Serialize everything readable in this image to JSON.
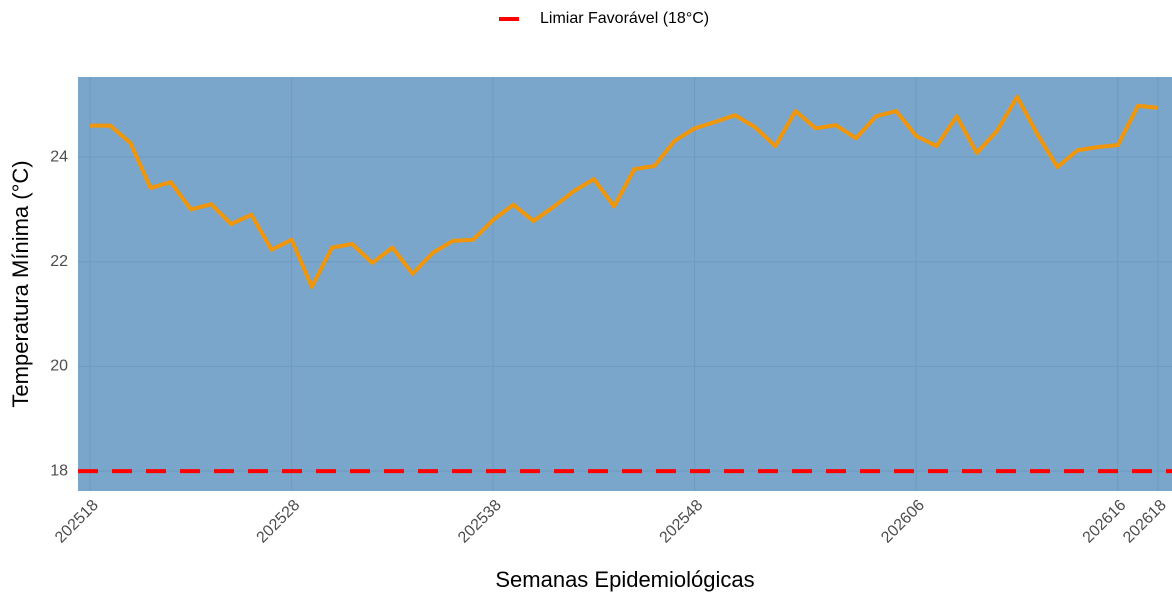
{
  "chart_data": {
    "type": "line",
    "x_label": "Semanas Epidemiológicas",
    "y_label": "Temperatura Mínima (°C)",
    "categories": [
      "202518",
      null,
      null,
      null,
      null,
      null,
      null,
      null,
      null,
      null,
      "202528",
      null,
      null,
      null,
      null,
      null,
      null,
      null,
      null,
      null,
      "202538",
      null,
      null,
      null,
      null,
      null,
      null,
      null,
      null,
      null,
      "202548",
      null,
      null,
      null,
      null,
      null,
      null,
      null,
      null,
      null,
      null,
      "202606",
      null,
      null,
      null,
      null,
      null,
      null,
      null,
      null,
      null,
      "202616",
      null,
      "202618"
    ],
    "values": [
      24.6,
      24.6,
      24.27,
      23.41,
      23.52,
      23.0,
      23.1,
      22.72,
      22.9,
      22.23,
      22.42,
      21.52,
      22.27,
      22.34,
      21.98,
      22.27,
      21.77,
      22.17,
      22.4,
      22.42,
      22.8,
      23.09,
      22.78,
      23.05,
      23.35,
      23.58,
      23.06,
      23.77,
      23.83,
      24.31,
      24.55,
      24.67,
      24.8,
      24.57,
      24.21,
      24.88,
      24.55,
      24.61,
      24.36,
      24.78,
      24.88,
      24.4,
      24.21,
      24.78,
      24.08,
      24.5,
      25.15,
      24.44,
      23.81,
      24.13,
      24.19,
      24.23,
      24.98,
      24.94
    ],
    "color": "#f0960a",
    "threshold": {
      "name": "Limiar Favorável (18°C)",
      "value": 18,
      "color": "#ff0000"
    },
    "ylim": [
      17.62,
      25.53
    ],
    "yticks": [
      18,
      20,
      22,
      24
    ],
    "grid": true,
    "legend_position": "top"
  }
}
